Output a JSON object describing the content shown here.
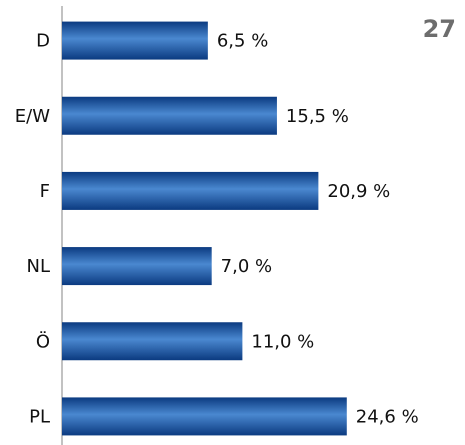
{
  "chart_data": {
    "type": "hbar",
    "annotation": "27",
    "categories": [
      "D",
      "E/W",
      "F",
      "NL",
      "Ö",
      "PL"
    ],
    "values": [
      6.5,
      15.5,
      20.9,
      7.0,
      11.0,
      24.6
    ],
    "value_labels": [
      "6,5 %",
      "15,5 %",
      "20,9 %",
      "7,0 %",
      "11,0 %",
      "24,6 %"
    ],
    "color": "#1b5aa8",
    "xlim": [
      -12.5,
      40
    ]
  }
}
